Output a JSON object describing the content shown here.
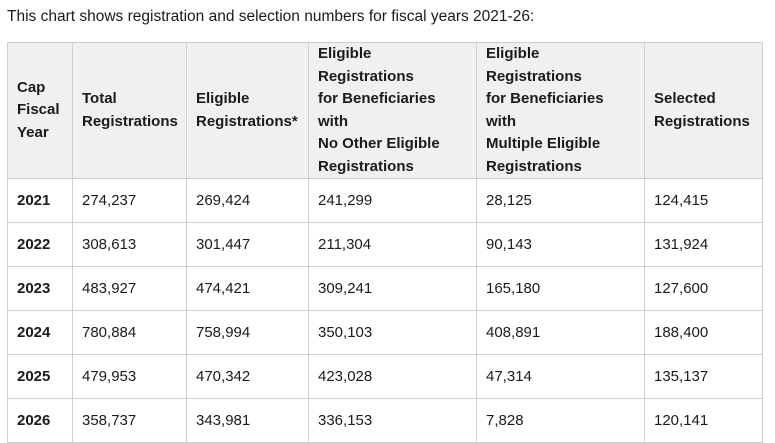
{
  "caption": "This chart shows registration and selection numbers for fiscal years 2021-26:",
  "table": {
    "headers": [
      [
        "Cap",
        "Fiscal",
        "Year"
      ],
      [
        "Total",
        "Registrations"
      ],
      [
        "Eligible",
        "Registrations*"
      ],
      [
        "Eligible Registrations",
        "for Beneficiaries with",
        "No Other Eligible",
        "Registrations"
      ],
      [
        "Eligible Registrations",
        "for Beneficiaries with",
        "Multiple Eligible",
        "Registrations"
      ],
      [
        "Selected",
        "Registrations"
      ]
    ],
    "rows": [
      [
        "2021",
        "274,237",
        "269,424",
        "241,299",
        "28,125",
        "124,415"
      ],
      [
        "2022",
        "308,613",
        "301,447",
        "211,304",
        "90,143",
        "131,924"
      ],
      [
        "2023",
        "483,927",
        "474,421",
        "309,241",
        "165,180",
        "127,600"
      ],
      [
        "2024",
        "780,884",
        "758,994",
        "350,103",
        "408,891",
        "188,400"
      ],
      [
        "2025",
        "479,953",
        "470,342",
        "423,028",
        "47,314",
        "135,137"
      ],
      [
        "2026",
        "358,737",
        "343,981",
        "336,153",
        "7,828",
        "120,141"
      ]
    ]
  }
}
